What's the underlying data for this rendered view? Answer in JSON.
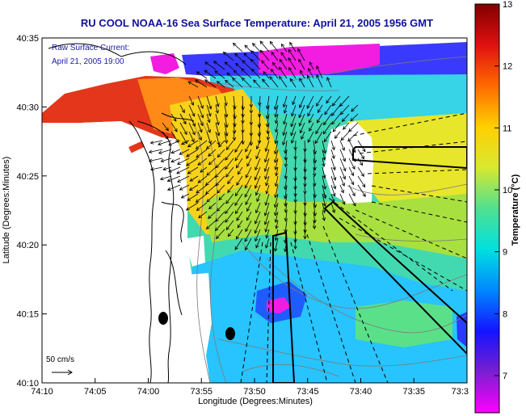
{
  "title": "RU COOL  NOAA-16  Sea Surface Temperature:  April 21, 2005 1956 GMT",
  "inset": {
    "line1": "Raw Surface Current:",
    "line2": "April 21, 2005 19:00"
  },
  "x_axis": {
    "label": "Longitude (Degrees:Minutes)",
    "ticks": [
      "74:10",
      "74:05",
      "74:00",
      "73:55",
      "73:50",
      "73:45",
      "73:40",
      "73:35",
      "73:3"
    ]
  },
  "y_axis": {
    "label": "Latitude (Degrees:Minutes)",
    "ticks": [
      "40:35",
      "40:30",
      "40:25",
      "40:20",
      "40:15",
      "40:10"
    ]
  },
  "colorbar": {
    "label": "Temperature (°C)",
    "ticks": [
      "13",
      "12",
      "11",
      "10",
      "9",
      "8",
      "7"
    ],
    "min": 6.4,
    "max": 13,
    "stops": [
      "#ff00ff",
      "#7a1fd0",
      "#1414ff",
      "#0088ff",
      "#00e0e0",
      "#50e090",
      "#d8e830",
      "#ffd000",
      "#ff6a00",
      "#e01010",
      "#800000"
    ]
  },
  "scale_bar": {
    "label": "50 cm/s"
  },
  "colors": {
    "title": "#1010a0",
    "land": "#ffffff",
    "coast": "#000000",
    "bathymetry": "#7a7a7a",
    "vectors": "#000000"
  }
}
